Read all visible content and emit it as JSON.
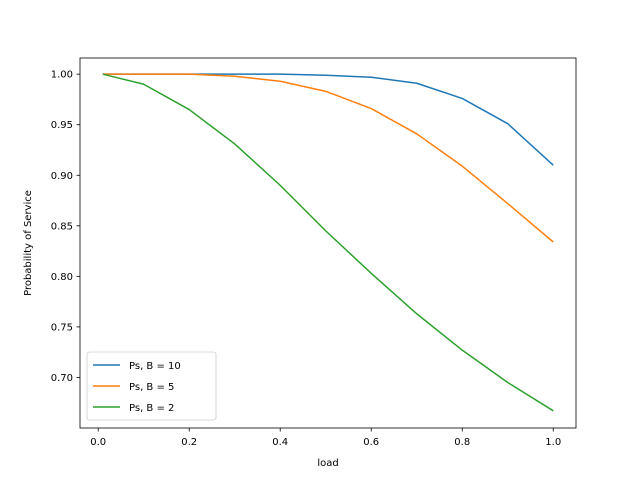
{
  "chart_data": {
    "type": "line",
    "title": "",
    "xlabel": "load",
    "ylabel": "Probability of Service",
    "xlim": [
      -0.04,
      1.05
    ],
    "ylim": [
      0.65,
      1.016
    ],
    "xticks": [
      0.0,
      0.2,
      0.4,
      0.6,
      0.8,
      1.0
    ],
    "xtick_labels": [
      "0.0",
      "0.2",
      "0.4",
      "0.6",
      "0.8",
      "1.0"
    ],
    "yticks": [
      0.7,
      0.75,
      0.8,
      0.85,
      0.9,
      0.95,
      1.0
    ],
    "ytick_labels": [
      "0.70",
      "0.75",
      "0.80",
      "0.85",
      "0.90",
      "0.95",
      "1.00"
    ],
    "grid": false,
    "legend_position": "lower-left",
    "x": [
      0.01,
      0.1,
      0.2,
      0.3,
      0.4,
      0.5,
      0.6,
      0.7,
      0.8,
      0.9,
      1.0
    ],
    "series": [
      {
        "name": "Ps, B = 10",
        "color": "#1f77b4",
        "values": [
          1.0,
          1.0,
          1.0,
          1.0,
          1.0,
          0.999,
          0.997,
          0.991,
          0.976,
          0.951,
          0.91
        ]
      },
      {
        "name": "Ps, B = 5",
        "color": "#ff7f0e",
        "values": [
          1.0,
          1.0,
          1.0,
          0.998,
          0.993,
          0.983,
          0.966,
          0.941,
          0.909,
          0.872,
          0.834
        ]
      },
      {
        "name": "Ps, B = 2",
        "color": "#2ca02c",
        "values": [
          1.0,
          0.99,
          0.965,
          0.931,
          0.89,
          0.845,
          0.803,
          0.763,
          0.727,
          0.695,
          0.667
        ]
      }
    ]
  }
}
